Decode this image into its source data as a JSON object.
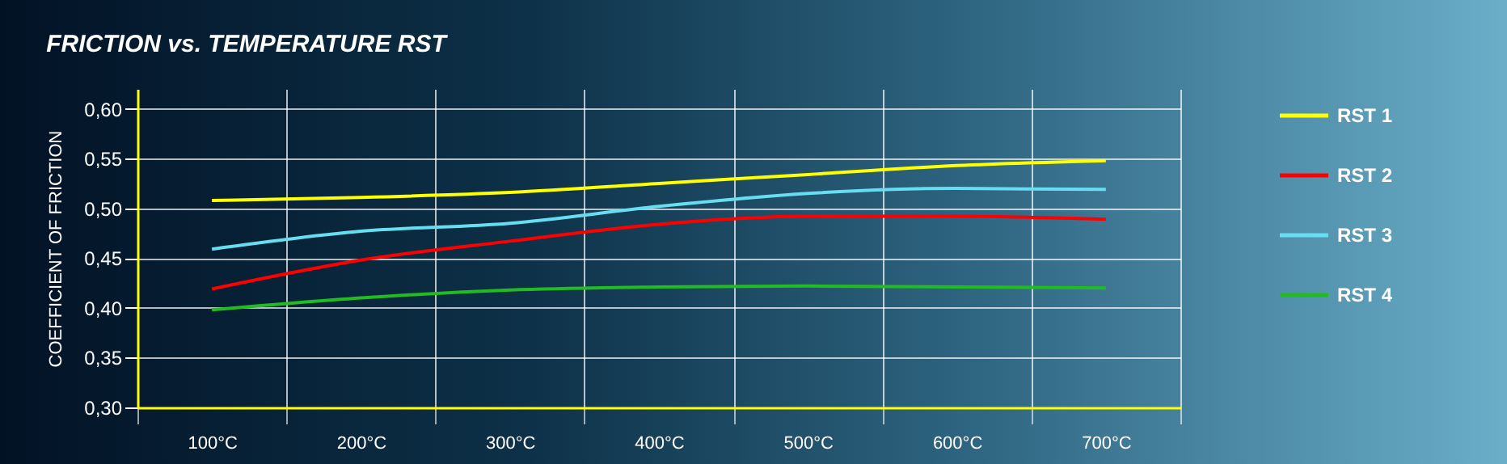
{
  "chart_data": {
    "type": "line",
    "title": "FRICTION vs. TEMPERATURE RST",
    "ylabel": "COEFFICIENT OF FRICTION",
    "categories": [
      "100°C",
      "200°C",
      "300°C",
      "400°C",
      "500°C",
      "600°C",
      "700°C"
    ],
    "series": [
      {
        "name": "RST 1",
        "color": "#ffff00",
        "values": [
          0.508,
          0.511,
          0.516,
          0.525,
          0.534,
          0.543,
          0.548
        ]
      },
      {
        "name": "RST 2",
        "color": "#ff0000",
        "values": [
          0.419,
          0.448,
          0.467,
          0.484,
          0.492,
          0.492,
          0.489
        ]
      },
      {
        "name": "RST 3",
        "color": "#66ddf0",
        "values": [
          0.459,
          0.477,
          0.485,
          0.502,
          0.515,
          0.52,
          0.519
        ]
      },
      {
        "name": "RST 4",
        "color": "#22bb22",
        "values": [
          0.398,
          0.41,
          0.418,
          0.421,
          0.422,
          0.421,
          0.42
        ]
      }
    ],
    "ylim": [
      0.3,
      0.62
    ],
    "yticks": [
      {
        "value": 0.3,
        "label": "0,30"
      },
      {
        "value": 0.35,
        "label": "0,35"
      },
      {
        "value": 0.4,
        "label": "0,40"
      },
      {
        "value": 0.45,
        "label": "0,45"
      },
      {
        "value": 0.5,
        "label": "0,50"
      },
      {
        "value": 0.55,
        "label": "0,55"
      },
      {
        "value": 0.6,
        "label": "0,60"
      }
    ],
    "grid": true,
    "legend": "right",
    "marker": "none",
    "line_style": "solid"
  }
}
